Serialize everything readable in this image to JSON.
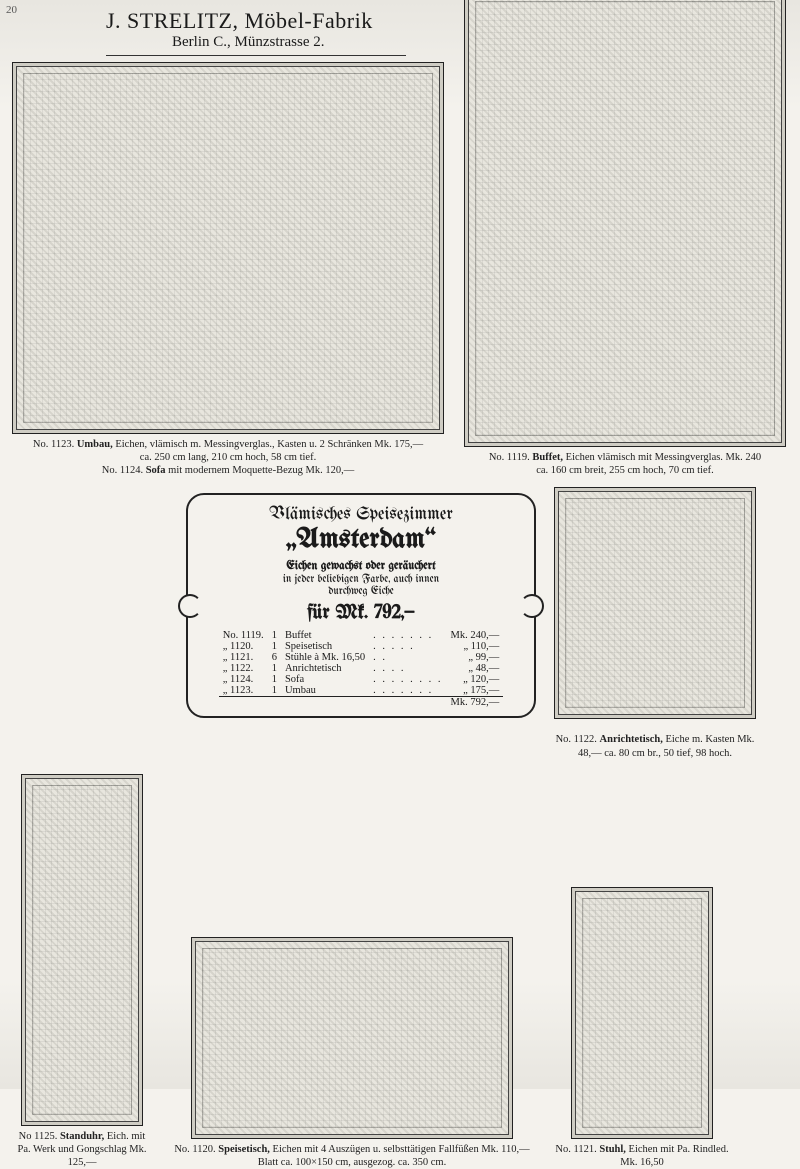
{
  "page_number": "20",
  "header": {
    "company": "J. STRELITZ, Möbel-Fabrik",
    "address": "Berlin C., Münzstrasse 2."
  },
  "items": {
    "umbau": {
      "no": "No. 1123.",
      "name": "Umbau,",
      "desc": "Eichen, vlämisch m. Messingverglas., Kasten u. 2 Schränken Mk. 175,—",
      "dims": "ca. 250 cm lang, 210 cm hoch, 58 cm tief.",
      "sub_no": "No. 1124.",
      "sub_name": "Sofa",
      "sub_desc": "mit modernem Moquette-Bezug Mk. 120,—"
    },
    "buffet": {
      "no": "No. 1119.",
      "name": "Buffet,",
      "desc": "Eichen vlämisch mit Messingverglas. Mk. 240",
      "dims": "ca. 160 cm breit, 255 cm hoch, 70 cm tief."
    },
    "anrichtetisch": {
      "no": "No. 1122.",
      "name": "Anrichtetisch,",
      "desc": "Eiche m. Kasten Mk. 48,— ca. 80 cm br., 50 tief, 98 hoch."
    },
    "standuhr": {
      "no": "No 1125.",
      "name": "Standuhr,",
      "desc": "Eich. mit Pa. Werk und Gongschlag Mk. 125,—"
    },
    "speisetisch": {
      "no": "No. 1120.",
      "name": "Speisetisch,",
      "desc": "Eichen mit 4 Auszügen u. selbsttätigen Fallfüßen Mk. 110,— Blatt ca. 100×150 cm, ausgezog. ca. 350 cm."
    },
    "stuhl": {
      "no": "No. 1121.",
      "name": "Stuhl,",
      "desc": "Eichen mit Pa. Rindled. Mk. 16,50"
    }
  },
  "infobox": {
    "line1": "Vlämisches Speisezimmer",
    "line2": "„Amsterdam“",
    "line3": "Eichen gewachst oder geräuchert",
    "line4": "in jeder beliebigen Farbe, auch innen",
    "line5": "durchweg Eiche",
    "price": "für Mk. 792,—",
    "rows": [
      {
        "no": "No. 1119.",
        "qty": "1",
        "item": "Buffet",
        "dots": ". . . . . . .",
        "price": "Mk. 240,—"
      },
      {
        "no": "„    1120.",
        "qty": "1",
        "item": "Speisetisch",
        "dots": ". . . . .",
        "price": "„  110,—"
      },
      {
        "no": "„    1121.",
        "qty": "6",
        "item": "Stühle à Mk. 16,50",
        "dots": ". .",
        "price": "„   99,—"
      },
      {
        "no": "„    1122.",
        "qty": "1",
        "item": "Anrichtetisch",
        "dots": ". . . .",
        "price": "„   48,—"
      },
      {
        "no": "„    1124.",
        "qty": "1",
        "item": "Sofa",
        "dots": ". . . . . . . .",
        "price": "„  120,—"
      },
      {
        "no": "„    1123.",
        "qty": "1",
        "item": "Umbau",
        "dots": ". . . . . . .",
        "price": "„  175,—"
      }
    ],
    "total_label": "Mk.",
    "total": "792,—"
  }
}
